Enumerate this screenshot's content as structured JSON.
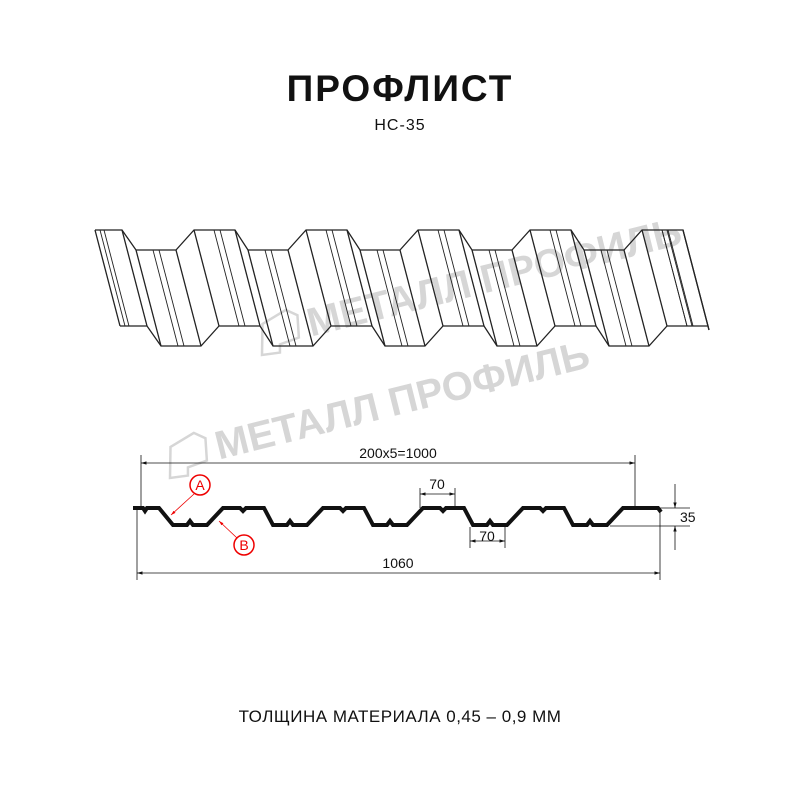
{
  "header": {
    "title": "ПРОФЛИСТ",
    "subtitle": "НС-35"
  },
  "watermark": {
    "text": "МЕТАЛЛ ПРОФИЛЬ",
    "color": "#d6d6d6"
  },
  "drawing": {
    "pitch_dim": "200x5=1000",
    "top_flat_dim": "70",
    "bottom_flat_dim": "70",
    "height_dim": "35",
    "total_width_dim": "1060",
    "callout_a": "A",
    "callout_b": "B",
    "callout_color": "#e00000",
    "profile_color": "#111111"
  },
  "footer": {
    "thickness": "ТОЛЩИНА МАТЕРИАЛА 0,45 – 0,9 ММ"
  }
}
